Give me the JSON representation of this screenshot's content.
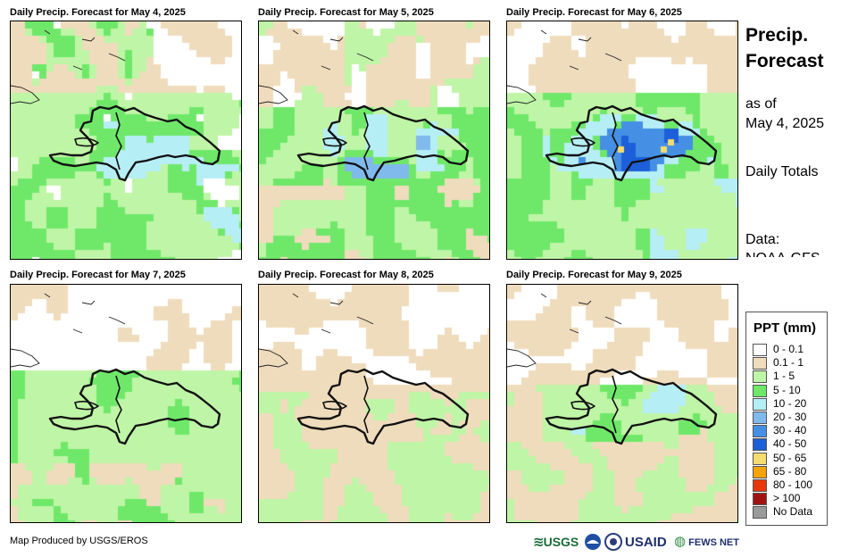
{
  "panels": [
    {
      "title": "Daily Precip. Forecast for May 4, 2025"
    },
    {
      "title": "Daily Precip. Forecast for May 5, 2025"
    },
    {
      "title": "Daily Precip. Forecast for May 6, 2025"
    },
    {
      "title": "Daily Precip. Forecast for May 7, 2025"
    },
    {
      "title": "Daily Precip. Forecast for May 8, 2025"
    },
    {
      "title": "Daily Precip. Forecast for May 9, 2025"
    }
  ],
  "side": {
    "title": "Precip. Forecast",
    "as_of_label": "as of",
    "as_of_date": "May 4, 2025",
    "totals": "Daily Totals",
    "data_label": "Data:",
    "data_source": "NOAA-GFS"
  },
  "legend": {
    "title": "PPT (mm)",
    "items": [
      {
        "label": "0 - 0.1",
        "color": "#ffffff"
      },
      {
        "label": "0.1 - 1",
        "color": "#efdcbc"
      },
      {
        "label": "1 - 5",
        "color": "#bff5a6"
      },
      {
        "label": "5 - 10",
        "color": "#6fe86a"
      },
      {
        "label": "10 - 20",
        "color": "#b6eef5"
      },
      {
        "label": "20 - 30",
        "color": "#80b9ec"
      },
      {
        "label": "30 - 40",
        "color": "#4590e4"
      },
      {
        "label": "40 - 50",
        "color": "#1c5fd8"
      },
      {
        "label": "50 - 65",
        "color": "#f5dc6e"
      },
      {
        "label": "65 - 80",
        "color": "#f5a30a"
      },
      {
        "label": "80 - 100",
        "color": "#e8380b"
      },
      {
        "label": "> 100",
        "color": "#a11313"
      },
      {
        "label": "No Data",
        "color": "#9a9a9a"
      }
    ]
  },
  "credit": "Map Produced by USGS/EROS",
  "logos": {
    "usgs": "USGS",
    "usaid": "USAID",
    "fewsnet": "FEWS NET"
  }
}
